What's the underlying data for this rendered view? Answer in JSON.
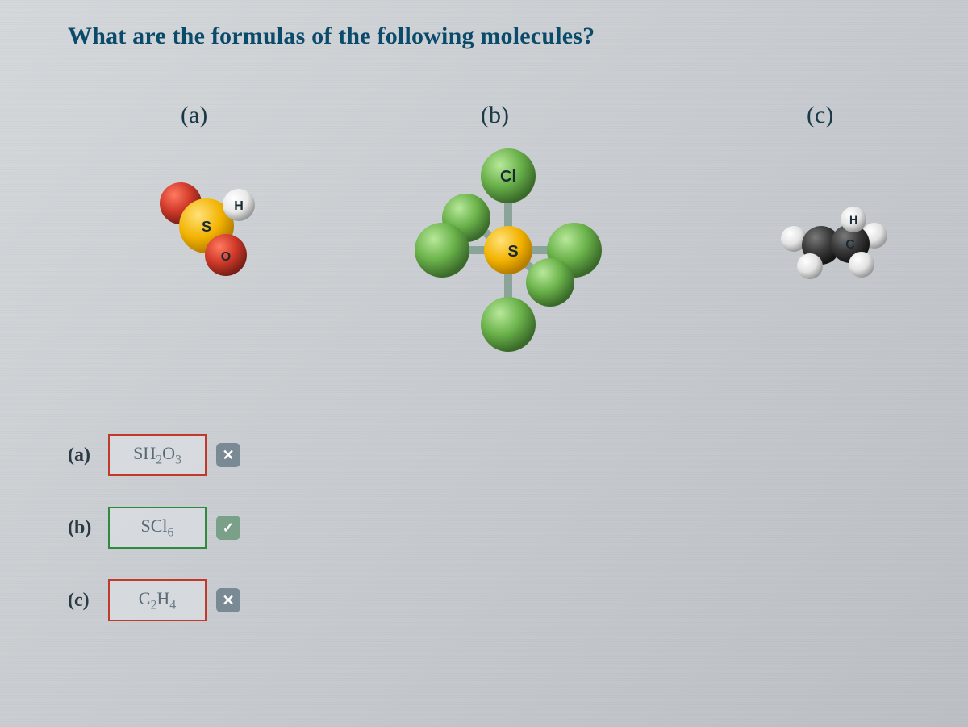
{
  "question": "What are the formulas of the following molecules?",
  "parts": {
    "a": {
      "label": "(a)"
    },
    "b": {
      "label": "(b)"
    },
    "c": {
      "label": "(c)"
    }
  },
  "molecule_a": {
    "atoms": {
      "S": {
        "label": "S",
        "color": "#f2b200",
        "edge": "#b57e00",
        "r": 34
      },
      "O": {
        "label": "O",
        "color": "#d13a2a",
        "edge": "#7a1f16",
        "r": 26
      },
      "H": {
        "label": "H",
        "color": "#e8e8e8",
        "edge": "#9a9a9a",
        "r": 20
      }
    },
    "atom_label_fontsize": 18
  },
  "molecule_b": {
    "atoms": {
      "S": {
        "label": "S",
        "color": "#f2b200",
        "edge": "#b57e00",
        "r": 30
      },
      "Cl": {
        "label": "Cl",
        "color": "#6ab24a",
        "edge": "#3a6a2a",
        "r": 34
      }
    },
    "cl_count": 6,
    "atom_label_fontsize": 20
  },
  "molecule_c": {
    "atoms": {
      "C": {
        "label": "C",
        "color": "#3a3a3a",
        "edge": "#151515",
        "r": 24
      },
      "H": {
        "label": "H",
        "color": "#e8e8e8",
        "edge": "#9a9a9a",
        "r": 16
      }
    },
    "atom_label_fontsize": 16,
    "label_color_on_dark": "#d0d0d0"
  },
  "answers": [
    {
      "prefix": "(a)",
      "formula_html": "SH<sub>2</sub>O<sub>3</sub>",
      "status": "wrong"
    },
    {
      "prefix": "(b)",
      "formula_html": "SCl<sub>6</sub>",
      "status": "right"
    },
    {
      "prefix": "(c)",
      "formula_html": "C<sub>2</sub>H<sub>4</sub>",
      "status": "wrong"
    }
  ],
  "icons": {
    "wrong_glyph": "✕",
    "right_glyph": "✓"
  },
  "colors": {
    "question_text": "#0a4a6a",
    "border_wrong": "#c0392b",
    "border_right": "#2e8b3e",
    "bg_gradient_from": "#d4d8db",
    "bg_gradient_to": "#bcc0c5"
  }
}
